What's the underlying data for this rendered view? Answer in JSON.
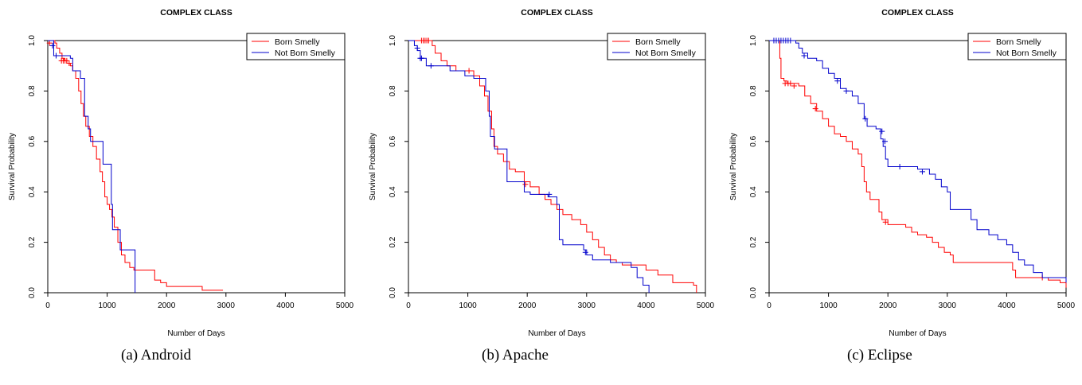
{
  "chart_data": [
    {
      "type": "line",
      "title": "COMPLEX CLASS",
      "xlabel": "Number of Days",
      "ylabel": "Survival Probability",
      "xlim": [
        0,
        5000
      ],
      "ylim": [
        0,
        1
      ],
      "xticks": [
        "0",
        "1000",
        "2000",
        "3000",
        "4000",
        "5000"
      ],
      "yticks": [
        "0.0",
        "0.2",
        "0.4",
        "0.6",
        "0.8",
        "1.0"
      ],
      "legend_position": "top-right",
      "caption": "(a)  Android",
      "series": [
        {
          "name": "Born Smelly",
          "color": "#ff0000",
          "points": [
            [
              0,
              1.0
            ],
            [
              120,
              0.99
            ],
            [
              150,
              0.97
            ],
            [
              200,
              0.95
            ],
            [
              240,
              0.93
            ],
            [
              280,
              0.92
            ],
            [
              320,
              0.91
            ],
            [
              380,
              0.9
            ],
            [
              420,
              0.88
            ],
            [
              470,
              0.85
            ],
            [
              520,
              0.8
            ],
            [
              560,
              0.75
            ],
            [
              600,
              0.7
            ],
            [
              640,
              0.66
            ],
            [
              700,
              0.62
            ],
            [
              760,
              0.58
            ],
            [
              820,
              0.53
            ],
            [
              880,
              0.48
            ],
            [
              920,
              0.44
            ],
            [
              960,
              0.38
            ],
            [
              1000,
              0.35
            ],
            [
              1040,
              0.33
            ],
            [
              1080,
              0.3
            ],
            [
              1120,
              0.26
            ],
            [
              1180,
              0.2
            ],
            [
              1240,
              0.15
            ],
            [
              1300,
              0.12
            ],
            [
              1380,
              0.1
            ],
            [
              1450,
              0.09
            ],
            [
              1800,
              0.05
            ],
            [
              1900,
              0.04
            ],
            [
              2000,
              0.025
            ],
            [
              2600,
              0.01
            ],
            [
              2950,
              0.01
            ]
          ],
          "censored": [
            [
              30,
              0.99
            ],
            [
              230,
              0.92
            ],
            [
              260,
              0.92
            ],
            [
              290,
              0.92
            ],
            [
              320,
              0.92
            ],
            [
              360,
              0.91
            ]
          ]
        },
        {
          "name": "Not Born Smelly",
          "color": "#0000cc",
          "points": [
            [
              0,
              1.0
            ],
            [
              100,
              0.94
            ],
            [
              300,
              0.94
            ],
            [
              380,
              0.93
            ],
            [
              420,
              0.88
            ],
            [
              550,
              0.85
            ],
            [
              620,
              0.7
            ],
            [
              680,
              0.65
            ],
            [
              720,
              0.6
            ],
            [
              900,
              0.6
            ],
            [
              930,
              0.51
            ],
            [
              1050,
              0.51
            ],
            [
              1070,
              0.35
            ],
            [
              1090,
              0.25
            ],
            [
              1180,
              0.25
            ],
            [
              1220,
              0.17
            ],
            [
              1460,
              0.17
            ],
            [
              1470,
              0.0
            ]
          ],
          "censored": [
            [
              80,
              0.98
            ],
            [
              140,
              0.94
            ]
          ]
        }
      ]
    },
    {
      "type": "line",
      "title": "COMPLEX CLASS",
      "xlabel": "Number of Days",
      "ylabel": "Survival Probability",
      "xlim": [
        0,
        5000
      ],
      "ylim": [
        0,
        1
      ],
      "xticks": [
        "0",
        "1000",
        "2000",
        "3000",
        "4000",
        "5000"
      ],
      "yticks": [
        "0.0",
        "0.2",
        "0.4",
        "0.6",
        "0.8",
        "1.0"
      ],
      "legend_position": "top-right",
      "caption": "(b)  Apache",
      "series": [
        {
          "name": "Born Smelly",
          "color": "#ff0000",
          "points": [
            [
              0,
              1.0
            ],
            [
              350,
              1.0
            ],
            [
              400,
              0.98
            ],
            [
              450,
              0.95
            ],
            [
              550,
              0.92
            ],
            [
              650,
              0.9
            ],
            [
              800,
              0.88
            ],
            [
              1000,
              0.88
            ],
            [
              1100,
              0.86
            ],
            [
              1200,
              0.82
            ],
            [
              1280,
              0.78
            ],
            [
              1340,
              0.72
            ],
            [
              1400,
              0.65
            ],
            [
              1440,
              0.58
            ],
            [
              1500,
              0.55
            ],
            [
              1600,
              0.52
            ],
            [
              1700,
              0.49
            ],
            [
              1800,
              0.48
            ],
            [
              1950,
              0.44
            ],
            [
              2050,
              0.42
            ],
            [
              2200,
              0.39
            ],
            [
              2300,
              0.37
            ],
            [
              2400,
              0.35
            ],
            [
              2500,
              0.33
            ],
            [
              2600,
              0.31
            ],
            [
              2750,
              0.29
            ],
            [
              2900,
              0.27
            ],
            [
              3000,
              0.24
            ],
            [
              3100,
              0.21
            ],
            [
              3200,
              0.18
            ],
            [
              3300,
              0.15
            ],
            [
              3400,
              0.13
            ],
            [
              3500,
              0.12
            ],
            [
              3600,
              0.11
            ],
            [
              3800,
              0.11
            ],
            [
              4000,
              0.09
            ],
            [
              4200,
              0.07
            ],
            [
              4450,
              0.04
            ],
            [
              4800,
              0.03
            ],
            [
              4850,
              0.0
            ]
          ],
          "censored": [
            [
              220,
              1.0
            ],
            [
              250,
              1.0
            ],
            [
              280,
              1.0
            ],
            [
              310,
              1.0
            ],
            [
              340,
              1.0
            ],
            [
              1020,
              0.88
            ],
            [
              1970,
              0.43
            ]
          ]
        },
        {
          "name": "Not Born Smelly",
          "color": "#0000cc",
          "points": [
            [
              0,
              1.0
            ],
            [
              60,
              1.0
            ],
            [
              100,
              0.98
            ],
            [
              150,
              0.96
            ],
            [
              200,
              0.93
            ],
            [
              300,
              0.9
            ],
            [
              700,
              0.88
            ],
            [
              950,
              0.86
            ],
            [
              1100,
              0.85
            ],
            [
              1300,
              0.8
            ],
            [
              1360,
              0.7
            ],
            [
              1380,
              0.62
            ],
            [
              1450,
              0.57
            ],
            [
              1600,
              0.57
            ],
            [
              1660,
              0.44
            ],
            [
              1900,
              0.44
            ],
            [
              1950,
              0.4
            ],
            [
              2050,
              0.39
            ],
            [
              2200,
              0.39
            ],
            [
              2350,
              0.38
            ],
            [
              2500,
              0.35
            ],
            [
              2540,
              0.21
            ],
            [
              2600,
              0.19
            ],
            [
              2950,
              0.17
            ],
            [
              3000,
              0.15
            ],
            [
              3100,
              0.13
            ],
            [
              3400,
              0.12
            ],
            [
              3750,
              0.1
            ],
            [
              3850,
              0.06
            ],
            [
              3950,
              0.03
            ],
            [
              4050,
              0.0
            ]
          ],
          "censored": [
            [
              150,
              0.97
            ],
            [
              200,
              0.93
            ],
            [
              220,
              0.93
            ],
            [
              380,
              0.9
            ],
            [
              2370,
              0.39
            ],
            [
              2980,
              0.16
            ]
          ]
        }
      ]
    },
    {
      "type": "line",
      "title": "COMPLEX CLASS",
      "xlabel": "Number of Days",
      "ylabel": "Survival Probability",
      "xlim": [
        0,
        5000
      ],
      "ylim": [
        0,
        1
      ],
      "xticks": [
        "0",
        "1000",
        "2000",
        "3000",
        "4000",
        "5000"
      ],
      "yticks": [
        "0.0",
        "0.2",
        "0.4",
        "0.6",
        "0.8",
        "1.0"
      ],
      "legend_position": "top-right",
      "caption": "(c)  Eclipse",
      "series": [
        {
          "name": "Born Smelly",
          "color": "#ff0000",
          "points": [
            [
              0,
              1.0
            ],
            [
              150,
              1.0
            ],
            [
              180,
              0.93
            ],
            [
              200,
              0.85
            ],
            [
              250,
              0.84
            ],
            [
              300,
              0.83
            ],
            [
              500,
              0.82
            ],
            [
              600,
              0.78
            ],
            [
              700,
              0.75
            ],
            [
              800,
              0.72
            ],
            [
              900,
              0.69
            ],
            [
              1000,
              0.66
            ],
            [
              1100,
              0.63
            ],
            [
              1200,
              0.62
            ],
            [
              1300,
              0.6
            ],
            [
              1400,
              0.57
            ],
            [
              1500,
              0.55
            ],
            [
              1560,
              0.5
            ],
            [
              1600,
              0.44
            ],
            [
              1640,
              0.4
            ],
            [
              1700,
              0.37
            ],
            [
              1800,
              0.37
            ],
            [
              1850,
              0.32
            ],
            [
              1900,
              0.29
            ],
            [
              2000,
              0.27
            ],
            [
              2200,
              0.27
            ],
            [
              2300,
              0.26
            ],
            [
              2400,
              0.24
            ],
            [
              2500,
              0.23
            ],
            [
              2650,
              0.22
            ],
            [
              2750,
              0.2
            ],
            [
              2850,
              0.18
            ],
            [
              2950,
              0.16
            ],
            [
              3050,
              0.15
            ],
            [
              3100,
              0.12
            ],
            [
              4000,
              0.12
            ],
            [
              4100,
              0.09
            ],
            [
              4150,
              0.06
            ],
            [
              4500,
              0.06
            ],
            [
              4700,
              0.05
            ],
            [
              4900,
              0.04
            ],
            [
              5000,
              0.02
            ]
          ],
          "censored": [
            [
              270,
              0.83
            ],
            [
              320,
              0.83
            ],
            [
              360,
              0.83
            ],
            [
              420,
              0.82
            ],
            [
              780,
              0.73
            ],
            [
              1960,
              0.28
            ],
            [
              4600,
              0.06
            ]
          ]
        },
        {
          "name": "Not Born Smelly",
          "color": "#0000cc",
          "points": [
            [
              0,
              1.0
            ],
            [
              400,
              1.0
            ],
            [
              450,
              0.99
            ],
            [
              500,
              0.97
            ],
            [
              560,
              0.95
            ],
            [
              650,
              0.93
            ],
            [
              800,
              0.92
            ],
            [
              900,
              0.89
            ],
            [
              1000,
              0.87
            ],
            [
              1100,
              0.85
            ],
            [
              1200,
              0.81
            ],
            [
              1300,
              0.8
            ],
            [
              1400,
              0.78
            ],
            [
              1500,
              0.75
            ],
            [
              1600,
              0.69
            ],
            [
              1650,
              0.66
            ],
            [
              1800,
              0.65
            ],
            [
              1880,
              0.61
            ],
            [
              1920,
              0.58
            ],
            [
              1960,
              0.53
            ],
            [
              2000,
              0.5
            ],
            [
              2300,
              0.5
            ],
            [
              2500,
              0.49
            ],
            [
              2700,
              0.47
            ],
            [
              2800,
              0.45
            ],
            [
              2900,
              0.42
            ],
            [
              3000,
              0.4
            ],
            [
              3050,
              0.33
            ],
            [
              3300,
              0.33
            ],
            [
              3400,
              0.29
            ],
            [
              3500,
              0.25
            ],
            [
              3700,
              0.23
            ],
            [
              3850,
              0.21
            ],
            [
              4000,
              0.19
            ],
            [
              4100,
              0.16
            ],
            [
              4200,
              0.13
            ],
            [
              4300,
              0.11
            ],
            [
              4450,
              0.08
            ],
            [
              4600,
              0.06
            ],
            [
              4800,
              0.06
            ],
            [
              4950,
              0.06
            ],
            [
              5000,
              0.04
            ]
          ],
          "censored": [
            [
              80,
              1.0
            ],
            [
              120,
              1.0
            ],
            [
              160,
              1.0
            ],
            [
              200,
              1.0
            ],
            [
              240,
              1.0
            ],
            [
              280,
              1.0
            ],
            [
              320,
              1.0
            ],
            [
              360,
              1.0
            ],
            [
              590,
              0.94
            ],
            [
              1150,
              0.84
            ],
            [
              1300,
              0.8
            ],
            [
              1620,
              0.69
            ],
            [
              1900,
              0.64
            ],
            [
              1950,
              0.6
            ],
            [
              2200,
              0.5
            ],
            [
              2580,
              0.48
            ]
          ]
        }
      ]
    }
  ]
}
